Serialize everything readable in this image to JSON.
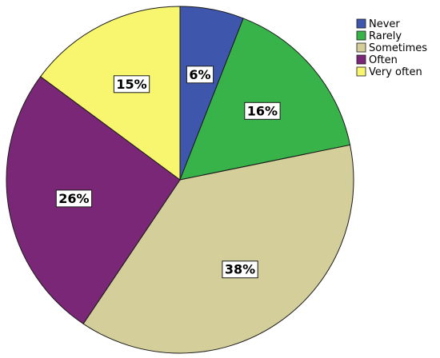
{
  "chart_data": {
    "type": "pie",
    "categories": [
      "Never",
      "Rarely",
      "Sometimes",
      "Often",
      "Very often"
    ],
    "values": [
      6,
      16,
      38,
      26,
      15
    ],
    "labels": [
      "6%",
      "16%",
      "38%",
      "26%",
      "15%"
    ],
    "colors": [
      "#3f56ad",
      "#37b34a",
      "#d4cf9a",
      "#7b2777",
      "#f7f66e"
    ],
    "start_angle": "12 o'clock",
    "direction": "clockwise",
    "legend": {
      "position": "top-right",
      "items": [
        "Never",
        "Rarely",
        "Sometimes",
        "Often",
        "Very often"
      ]
    }
  }
}
